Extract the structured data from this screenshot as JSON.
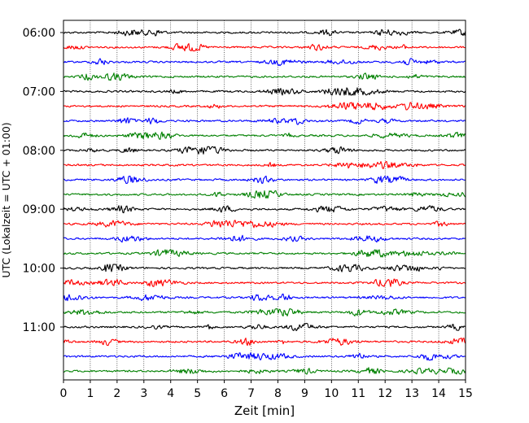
{
  "chart_data": {
    "type": "line",
    "title": "",
    "xlabel": "Zeit  [min]",
    "ylabel": "UTC (Lokalzeit = UTC + 01:00)",
    "xlim": [
      0,
      15
    ],
    "x_ticks": [
      "0",
      "1",
      "2",
      "3",
      "4",
      "5",
      "6",
      "7",
      "8",
      "9",
      "10",
      "11",
      "12",
      "13",
      "14",
      "15"
    ],
    "y_ticks": [
      "06:00",
      "07:00",
      "08:00",
      "09:00",
      "10:00",
      "11:00"
    ],
    "grid": "vertical dotted lines at each minute",
    "trace_colors": [
      "#000000",
      "#ff0000",
      "#0000ff",
      "#008000"
    ],
    "trace_start_times": [
      "06:00",
      "06:15",
      "06:30",
      "06:45",
      "07:00",
      "07:15",
      "07:30",
      "07:45",
      "08:00",
      "08:15",
      "08:30",
      "08:45",
      "09:00",
      "09:15",
      "09:30",
      "09:45",
      "10:00",
      "10:15",
      "10:30",
      "10:45",
      "11:00",
      "11:15",
      "11:30",
      "11:45"
    ],
    "trace_minutes_per_line": 15
  }
}
